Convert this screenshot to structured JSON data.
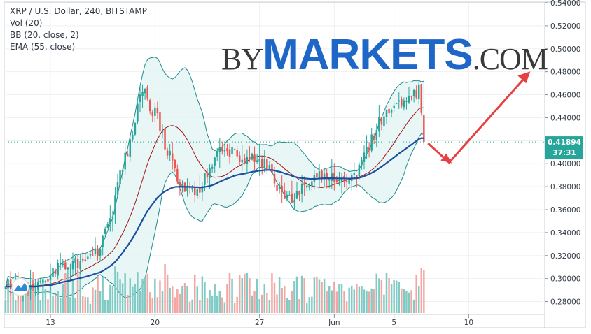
{
  "legend": {
    "symbol": "XRP / U.S. Dollar, 240, BITSTAMP",
    "vol": "Vol (20)",
    "bb": "BB (20, close, 2)",
    "ema": "EMA (55, close)"
  },
  "watermark": {
    "by": "BY",
    "markets": "MARKETS",
    "com": ".COM"
  },
  "price_badge": {
    "value": "0.41894",
    "countdown": "37:31",
    "color": "#26a69a"
  },
  "colors": {
    "up": "#26a69a",
    "down": "#ef5350",
    "vol_up": "#80cbc4",
    "vol_down": "#f4a6a4",
    "ema": "#1b4fa0",
    "bb_basis": "#a31515",
    "bb_band": "#1f8a8a",
    "bb_fill": "#e3f4f4",
    "arrow": "#e54141",
    "grid": "#eef0f3"
  },
  "chart_data": {
    "type": "candlestick",
    "title": "XRP / U.S. Dollar, 240, BITSTAMP",
    "timeframe_hours": 4,
    "ylim": [
      0.27,
      0.54
    ],
    "y_ticks": [
      "0.54000",
      "0.52000",
      "0.50000",
      "0.48000",
      "0.46000",
      "0.44000",
      "0.42000",
      "0.40000",
      "0.38000",
      "0.36000",
      "0.34000",
      "0.32000",
      "0.30000",
      "0.28000"
    ],
    "x_ticks": [
      "13",
      "Jun",
      "20",
      "27",
      "5",
      "10"
    ],
    "x_tick_dates": [
      "May 13",
      "Jun 1",
      "May 20",
      "May 27",
      "Jun 5",
      "Jun 10"
    ],
    "x_range_dates": [
      "May 10",
      "Jun 15"
    ],
    "first_bar": "May 10 00:00",
    "anchors_close": [
      [
        0,
        0.297
      ],
      [
        8,
        0.294
      ],
      [
        14,
        0.297
      ],
      [
        22,
        0.31
      ],
      [
        30,
        0.315
      ],
      [
        34,
        0.32
      ],
      [
        38,
        0.326
      ],
      [
        43,
        0.36
      ],
      [
        46,
        0.39
      ],
      [
        50,
        0.42
      ],
      [
        52,
        0.44
      ],
      [
        54,
        0.455
      ],
      [
        56,
        0.465
      ],
      [
        58,
        0.45
      ],
      [
        61,
        0.44
      ],
      [
        64,
        0.415
      ],
      [
        68,
        0.395
      ],
      [
        72,
        0.375
      ],
      [
        78,
        0.38
      ],
      [
        82,
        0.395
      ],
      [
        85,
        0.41
      ],
      [
        88,
        0.408
      ],
      [
        91,
        0.41
      ],
      [
        95,
        0.402
      ],
      [
        99,
        0.404
      ],
      [
        103,
        0.4
      ],
      [
        107,
        0.395
      ],
      [
        109,
        0.38
      ],
      [
        112,
        0.374
      ],
      [
        116,
        0.369
      ],
      [
        118,
        0.378
      ],
      [
        121,
        0.381
      ],
      [
        125,
        0.389
      ],
      [
        129,
        0.391
      ],
      [
        133,
        0.387
      ],
      [
        135,
        0.385
      ],
      [
        138,
        0.383
      ],
      [
        141,
        0.39
      ],
      [
        144,
        0.412
      ],
      [
        147,
        0.42
      ],
      [
        150,
        0.435
      ],
      [
        153,
        0.442
      ],
      [
        156,
        0.45
      ],
      [
        160,
        0.455
      ],
      [
        163,
        0.46
      ],
      [
        165,
        0.463
      ],
      [
        166,
        0.466
      ],
      [
        167,
        0.443
      ],
      [
        168,
        0.425
      ]
    ],
    "series": [
      {
        "name": "Vol (20)",
        "kind": "volume_histogram"
      },
      {
        "name": "BB (20, close, 2)",
        "kind": "bollinger_bands",
        "period": 20,
        "mult": 2
      },
      {
        "name": "EMA (55, close)",
        "kind": "ema",
        "period": 55
      }
    ],
    "last_price": 0.41894,
    "annotation": "arrow pointing down then up toward 0.48",
    "grid": true,
    "legend_position": "top-left"
  }
}
